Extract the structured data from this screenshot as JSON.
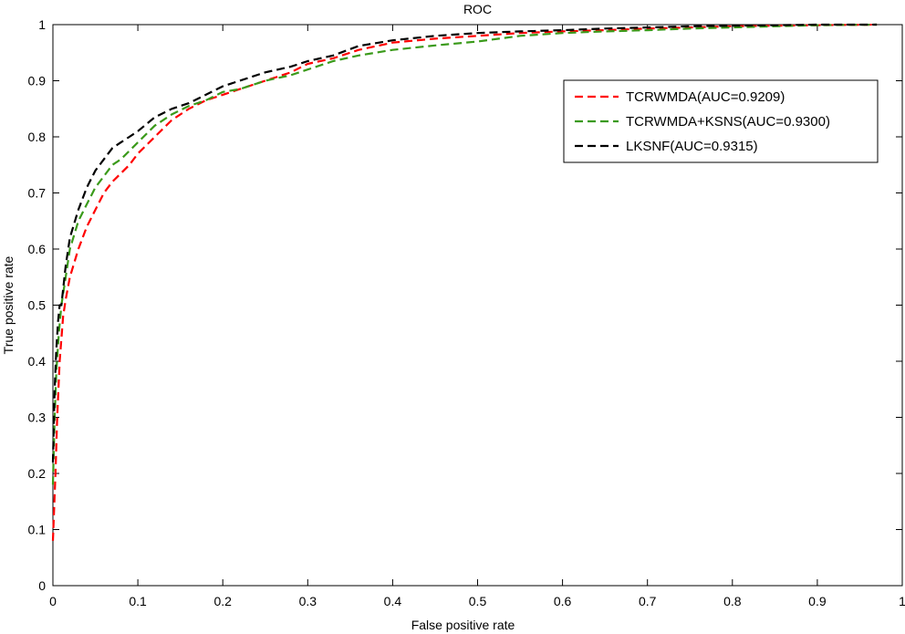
{
  "chart_data": {
    "type": "line",
    "title": "ROC",
    "xlabel": "False positive rate",
    "ylabel": "True positive rate",
    "xlim": [
      0,
      1
    ],
    "ylim": [
      0,
      1
    ],
    "xticks": [
      "0",
      "0.1",
      "0.2",
      "0.3",
      "0.4",
      "0.5",
      "0.6",
      "0.7",
      "0.8",
      "0.9",
      "1"
    ],
    "yticks": [
      "0",
      "0.1",
      "0.2",
      "0.3",
      "0.4",
      "0.5",
      "0.6",
      "0.7",
      "0.8",
      "0.9",
      "1"
    ],
    "grid": false,
    "legend_position": "top-right",
    "series": [
      {
        "name": "TCRWMDA(AUC=0.9209)",
        "color": "#ff0000",
        "style": "dashed",
        "x": [
          0,
          0.003,
          0.005,
          0.008,
          0.012,
          0.015,
          0.02,
          0.03,
          0.04,
          0.05,
          0.06,
          0.07,
          0.08,
          0.09,
          0.1,
          0.12,
          0.14,
          0.16,
          0.18,
          0.2,
          0.22,
          0.25,
          0.28,
          0.3,
          0.33,
          0.36,
          0.4,
          0.45,
          0.5,
          0.55,
          0.6,
          0.65,
          0.7,
          0.75,
          0.8,
          0.85,
          0.9,
          0.97
        ],
        "y": [
          0.08,
          0.2,
          0.3,
          0.4,
          0.48,
          0.51,
          0.55,
          0.6,
          0.64,
          0.67,
          0.7,
          0.72,
          0.735,
          0.75,
          0.77,
          0.8,
          0.83,
          0.85,
          0.865,
          0.875,
          0.885,
          0.9,
          0.915,
          0.93,
          0.94,
          0.955,
          0.968,
          0.975,
          0.98,
          0.985,
          0.988,
          0.99,
          0.993,
          0.995,
          0.997,
          0.998,
          0.999,
          1.0
        ]
      },
      {
        "name": "TCRWMDA+KSNS(AUC=0.9300)",
        "color": "#3a9a1a",
        "style": "dashed",
        "x": [
          0,
          0.002,
          0.004,
          0.007,
          0.01,
          0.015,
          0.02,
          0.03,
          0.04,
          0.05,
          0.06,
          0.07,
          0.08,
          0.09,
          0.1,
          0.12,
          0.14,
          0.16,
          0.18,
          0.2,
          0.22,
          0.25,
          0.28,
          0.3,
          0.33,
          0.36,
          0.4,
          0.45,
          0.5,
          0.55,
          0.6,
          0.65,
          0.7,
          0.75,
          0.8,
          0.85,
          0.9,
          0.97
        ],
        "y": [
          0.18,
          0.3,
          0.38,
          0.45,
          0.5,
          0.55,
          0.6,
          0.65,
          0.68,
          0.71,
          0.73,
          0.75,
          0.76,
          0.775,
          0.79,
          0.82,
          0.84,
          0.855,
          0.865,
          0.88,
          0.885,
          0.9,
          0.91,
          0.92,
          0.935,
          0.945,
          0.955,
          0.963,
          0.97,
          0.98,
          0.985,
          0.988,
          0.99,
          0.993,
          0.995,
          0.997,
          0.999,
          1.0
        ]
      },
      {
        "name": "LKSNF(AUC=0.9315)",
        "color": "#000000",
        "style": "dashed",
        "x": [
          0,
          0.002,
          0.004,
          0.006,
          0.008,
          0.01,
          0.015,
          0.02,
          0.03,
          0.04,
          0.05,
          0.06,
          0.07,
          0.08,
          0.09,
          0.1,
          0.12,
          0.14,
          0.16,
          0.18,
          0.2,
          0.22,
          0.25,
          0.28,
          0.3,
          0.33,
          0.36,
          0.4,
          0.45,
          0.5,
          0.55,
          0.6,
          0.65,
          0.7,
          0.75,
          0.8,
          0.85,
          0.9,
          0.97
        ],
        "y": [
          0.22,
          0.35,
          0.42,
          0.47,
          0.5,
          0.5,
          0.57,
          0.62,
          0.67,
          0.71,
          0.74,
          0.76,
          0.78,
          0.79,
          0.8,
          0.81,
          0.835,
          0.85,
          0.86,
          0.875,
          0.89,
          0.9,
          0.915,
          0.925,
          0.935,
          0.945,
          0.962,
          0.972,
          0.98,
          0.985,
          0.988,
          0.99,
          0.993,
          0.995,
          0.997,
          0.998,
          0.999,
          1.0,
          1.0
        ]
      }
    ]
  }
}
